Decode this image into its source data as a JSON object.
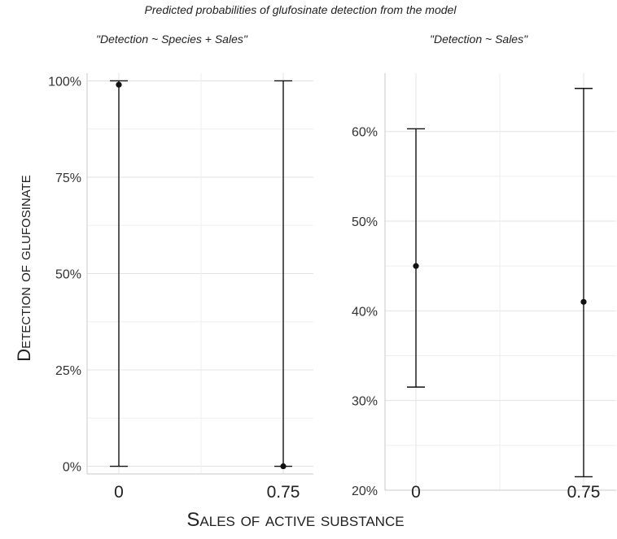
{
  "figure": {
    "title": "Predicted probabilities of glufosinate detection from the model",
    "ylabel": "Detection of glufosinate",
    "xlabel": "Sales of active substance"
  },
  "chart_data": [
    {
      "type": "errorbar",
      "title": "\"Detection ~ Species + Sales\"",
      "categories": [
        "0",
        "0.75"
      ],
      "estimate": [
        0.99,
        0.0
      ],
      "lower": [
        0.0,
        0.0
      ],
      "upper": [
        1.0,
        1.0
      ],
      "ylim": [
        -0.02,
        1.02
      ],
      "yticks": [
        0,
        0.25,
        0.5,
        0.75,
        1.0
      ],
      "ytick_labels": [
        "0%",
        "25%",
        "50%",
        "75%",
        "100%"
      ],
      "grid": true
    },
    {
      "type": "errorbar",
      "title": "\"Detection ~ Sales\"",
      "categories": [
        "0",
        "0.75"
      ],
      "estimate": [
        0.45,
        0.41
      ],
      "lower": [
        0.315,
        0.215
      ],
      "upper": [
        0.603,
        0.648
      ],
      "ylim": [
        0.2,
        0.665
      ],
      "yticks": [
        0.2,
        0.3,
        0.4,
        0.5,
        0.6
      ],
      "ytick_labels": [
        "20%",
        "30%",
        "40%",
        "50%",
        "60%"
      ],
      "grid": true
    }
  ]
}
